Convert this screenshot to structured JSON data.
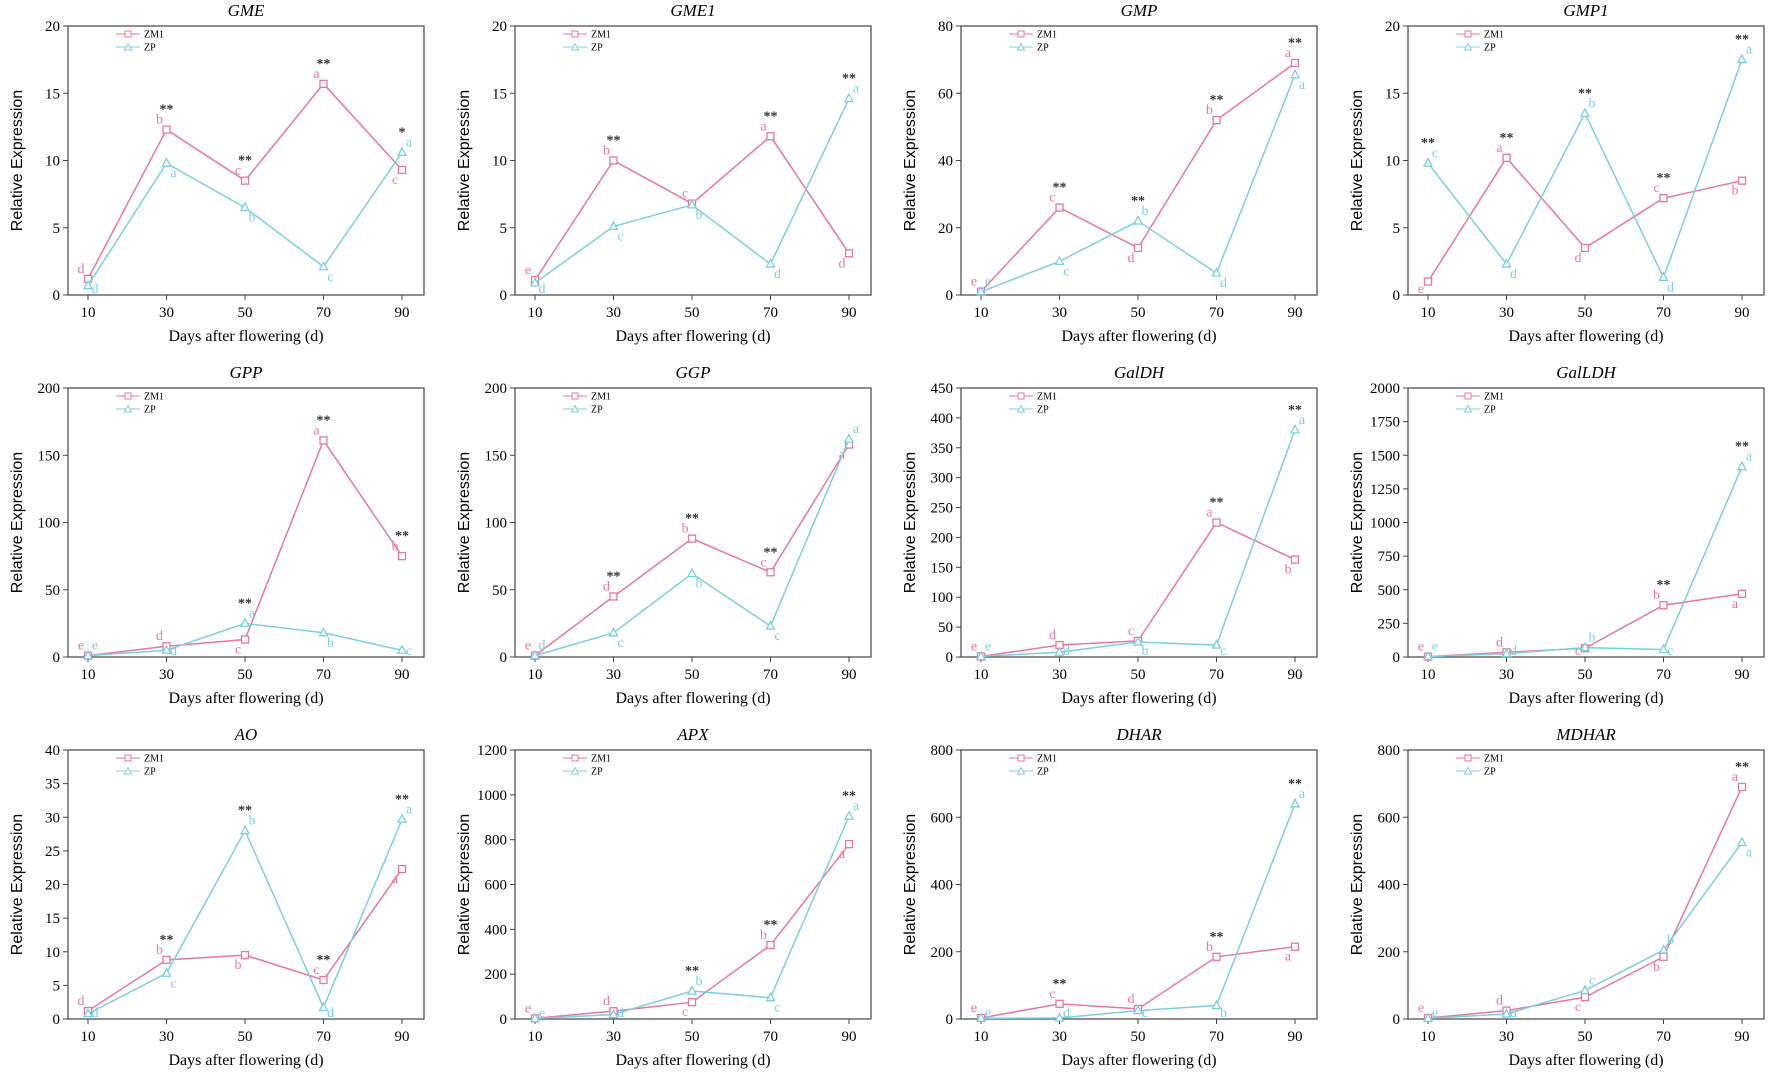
{
  "colors": {
    "ZM1": "#e8779f",
    "ZP": "#7ccfe2"
  },
  "common": {
    "xlabel": "Days after flowering (d)",
    "ylabel": "Relative Expression",
    "legend": [
      "ZM1",
      "ZP"
    ]
  },
  "chart_data": [
    {
      "type": "line",
      "title": "GME",
      "x": [
        10,
        30,
        50,
        70,
        90
      ],
      "ylim": [
        0,
        20
      ],
      "ystep": 5,
      "series": [
        {
          "name": "ZM1",
          "values": [
            1.2,
            12.3,
            8.5,
            15.7,
            9.3
          ],
          "letters": [
            "d",
            "b",
            "c",
            "a",
            "c"
          ]
        },
        {
          "name": "ZP",
          "values": [
            0.7,
            9.8,
            6.5,
            2.1,
            10.6
          ],
          "letters": [
            "d",
            "a",
            "b",
            "c",
            "a"
          ]
        }
      ],
      "significance": [
        "",
        "**",
        "**",
        "**",
        "*"
      ]
    },
    {
      "type": "line",
      "title": "GME1",
      "x": [
        10,
        30,
        50,
        70,
        90
      ],
      "ylim": [
        0,
        20
      ],
      "ystep": 5,
      "series": [
        {
          "name": "ZM1",
          "values": [
            1.1,
            10.0,
            6.8,
            11.8,
            3.1
          ],
          "letters": [
            "e",
            "b",
            "c",
            "a",
            "d"
          ]
        },
        {
          "name": "ZP",
          "values": [
            0.9,
            5.1,
            6.7,
            2.3,
            14.6
          ],
          "letters": [
            "d",
            "c",
            "b",
            "d",
            "a"
          ]
        }
      ],
      "significance": [
        "",
        "**",
        "",
        "**",
        "**"
      ]
    },
    {
      "type": "line",
      "title": "GMP",
      "x": [
        10,
        30,
        50,
        70,
        90
      ],
      "ylim": [
        0,
        80
      ],
      "ystep": 20,
      "series": [
        {
          "name": "ZM1",
          "values": [
            1,
            26,
            14,
            52,
            69
          ],
          "letters": [
            "e",
            "c",
            "d",
            "b",
            "a"
          ]
        },
        {
          "name": "ZP",
          "values": [
            1,
            10,
            22,
            6.5,
            65.5
          ],
          "letters": [
            "e",
            "c",
            "b",
            "d",
            "a"
          ]
        }
      ],
      "significance": [
        "",
        "**",
        "**",
        "**",
        "**"
      ]
    },
    {
      "type": "line",
      "title": "GMP1",
      "x": [
        10,
        30,
        50,
        70,
        90
      ],
      "ylim": [
        0,
        20
      ],
      "ystep": 5,
      "series": [
        {
          "name": "ZM1",
          "values": [
            1.0,
            10.2,
            3.5,
            7.2,
            8.5
          ],
          "letters": [
            "e",
            "a",
            "d",
            "c",
            "b"
          ]
        },
        {
          "name": "ZP",
          "values": [
            9.8,
            2.3,
            13.5,
            1.3,
            17.5
          ],
          "letters": [
            "c",
            "d",
            "b",
            "d",
            "a"
          ]
        }
      ],
      "significance": [
        "**",
        "**",
        "**",
        "**",
        "**"
      ]
    },
    {
      "type": "line",
      "title": "GPP",
      "x": [
        10,
        30,
        50,
        70,
        90
      ],
      "ylim": [
        0,
        200
      ],
      "ystep": 50,
      "series": [
        {
          "name": "ZM1",
          "values": [
            1,
            8,
            13,
            161,
            75
          ],
          "letters": [
            "e",
            "d",
            "c",
            "a",
            "b"
          ]
        },
        {
          "name": "ZP",
          "values": [
            1,
            5,
            25,
            18,
            5
          ],
          "letters": [
            "e",
            "d",
            "a",
            "b",
            "c"
          ]
        }
      ],
      "significance": [
        "",
        "",
        "**",
        "**",
        "**"
      ]
    },
    {
      "type": "line",
      "title": "GGP",
      "x": [
        10,
        30,
        50,
        70,
        90
      ],
      "ylim": [
        0,
        200
      ],
      "ystep": 50,
      "series": [
        {
          "name": "ZM1",
          "values": [
            1,
            45,
            88,
            63,
            158
          ],
          "letters": [
            "e",
            "d",
            "b",
            "c",
            "a"
          ]
        },
        {
          "name": "ZP",
          "values": [
            1,
            18,
            62,
            23,
            162
          ],
          "letters": [
            "d",
            "c",
            "b",
            "c",
            "a"
          ]
        }
      ],
      "significance": [
        "",
        "**",
        "**",
        "**",
        ""
      ]
    },
    {
      "type": "line",
      "title": "GalDH",
      "x": [
        10,
        30,
        50,
        70,
        90
      ],
      "ylim": [
        0,
        450
      ],
      "ystep": 50,
      "series": [
        {
          "name": "ZM1",
          "values": [
            1,
            20,
            27,
            225,
            163
          ],
          "letters": [
            "e",
            "d",
            "c",
            "a",
            "b"
          ]
        },
        {
          "name": "ZP",
          "values": [
            1,
            8,
            25,
            20,
            380
          ],
          "letters": [
            "e",
            "d",
            "b",
            "c",
            "a"
          ]
        }
      ],
      "significance": [
        "",
        "",
        "",
        "**",
        "**"
      ]
    },
    {
      "type": "line",
      "title": "GalLDH",
      "x": [
        10,
        30,
        50,
        70,
        90
      ],
      "ylim": [
        0,
        2000
      ],
      "ystep": 250,
      "series": [
        {
          "name": "ZM1",
          "values": [
            3,
            35,
            65,
            385,
            470
          ],
          "letters": [
            "e",
            "d",
            "c",
            "b",
            "a"
          ]
        },
        {
          "name": "ZP",
          "values": [
            3,
            25,
            70,
            55,
            1415
          ],
          "letters": [
            "e",
            "d",
            "b",
            "c",
            "a"
          ]
        }
      ],
      "significance": [
        "",
        "",
        "",
        "**",
        "**"
      ]
    },
    {
      "type": "line",
      "title": "AO",
      "x": [
        10,
        30,
        50,
        70,
        90
      ],
      "ylim": [
        0,
        40
      ],
      "ystep": 5,
      "series": [
        {
          "name": "ZM1",
          "values": [
            1.2,
            8.8,
            9.5,
            5.8,
            22.3
          ],
          "letters": [
            "d",
            "b",
            "b",
            "c",
            "a"
          ]
        },
        {
          "name": "ZP",
          "values": [
            0.8,
            6.8,
            28,
            1.7,
            29.7
          ],
          "letters": [
            "d",
            "c",
            "b",
            "d",
            "a"
          ]
        }
      ],
      "significance": [
        "",
        "**",
        "**",
        "**",
        "**"
      ]
    },
    {
      "type": "line",
      "title": "APX",
      "x": [
        10,
        30,
        50,
        70,
        90
      ],
      "ylim": [
        0,
        1200
      ],
      "ystep": 200,
      "series": [
        {
          "name": "ZM1",
          "values": [
            3,
            35,
            75,
            330,
            780
          ],
          "letters": [
            "e",
            "d",
            "c",
            "b",
            "a"
          ]
        },
        {
          "name": "ZP",
          "values": [
            2,
            20,
            125,
            95,
            905
          ],
          "letters": [
            "e",
            "d",
            "b",
            "c",
            "a"
          ]
        }
      ],
      "significance": [
        "",
        "",
        "**",
        "**",
        "**"
      ]
    },
    {
      "type": "line",
      "title": "DHAR",
      "x": [
        10,
        30,
        50,
        70,
        90
      ],
      "ylim": [
        0,
        800
      ],
      "ystep": 200,
      "series": [
        {
          "name": "ZM1",
          "values": [
            3,
            45,
            30,
            185,
            215
          ],
          "letters": [
            "e",
            "c",
            "d",
            "b",
            "a"
          ]
        },
        {
          "name": "ZP",
          "values": [
            2,
            3,
            25,
            40,
            640
          ],
          "letters": [
            "e",
            "d",
            "c",
            "b",
            "a"
          ]
        }
      ],
      "significance": [
        "",
        "**",
        "",
        "**",
        "**"
      ]
    },
    {
      "type": "line",
      "title": "MDHAR",
      "x": [
        10,
        30,
        50,
        70,
        90
      ],
      "ylim": [
        0,
        800
      ],
      "ystep": 200,
      "series": [
        {
          "name": "ZM1",
          "values": [
            3,
            25,
            65,
            185,
            690
          ],
          "letters": [
            "e",
            "d",
            "c",
            "b",
            "a"
          ]
        },
        {
          "name": "ZP",
          "values": [
            2,
            15,
            85,
            205,
            525
          ],
          "letters": [
            "e",
            "d",
            "c",
            "b",
            "a"
          ]
        }
      ],
      "significance": [
        "",
        "",
        "",
        "",
        "**"
      ]
    }
  ]
}
